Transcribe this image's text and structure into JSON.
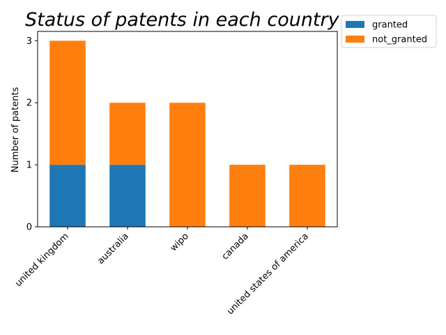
{
  "chart_data": {
    "type": "bar",
    "stacked": true,
    "title": "Status of patents in each country",
    "xlabel": "",
    "ylabel": "Number of patents",
    "categories": [
      "united kingdom",
      "australia",
      "wipo",
      "canada",
      "united states of america"
    ],
    "series": [
      {
        "name": "granted",
        "values": [
          1,
          1,
          0,
          0,
          0
        ],
        "color": "#1f77b4"
      },
      {
        "name": "not_granted",
        "values": [
          2,
          1,
          2,
          1,
          1
        ],
        "color": "#ff7f0e"
      }
    ],
    "yticks": [
      "0",
      "1",
      "2",
      "3"
    ],
    "ylim": [
      0,
      3.15
    ],
    "legend_position": "top-right-outside",
    "grid": false
  }
}
